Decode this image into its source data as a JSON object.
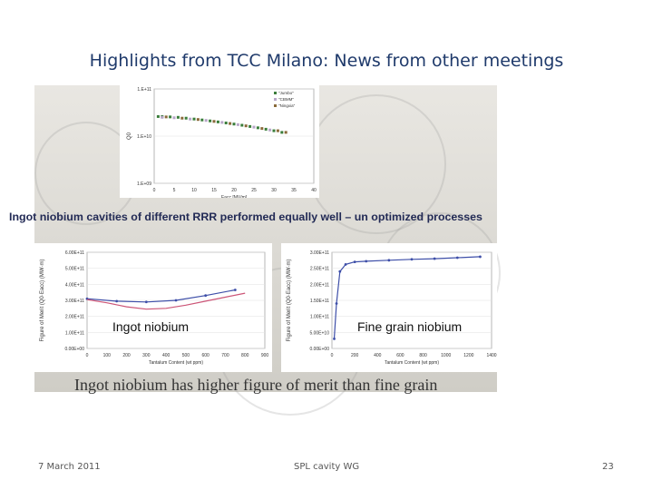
{
  "slide": {
    "title": "Highlights from TCC Milano: News from other meetings",
    "statement": "Ingot niobium cavities of different RRR performed equally well – un optimized processes",
    "caption": "Ingot niobium has higher figure of merit than fine grain",
    "footer": {
      "date": "7 March 2011",
      "center": "SPL cavity WG",
      "page": "23"
    },
    "colors": {
      "title": "#1f3a6b",
      "statement": "#222a55"
    }
  },
  "chart_data": [
    {
      "type": "scatter",
      "xlabel": "Eacc [MV/m]",
      "ylabel": "Q0",
      "xlim": [
        0,
        40
      ],
      "ylim": [
        1000000000.0,
        100000000000.0
      ],
      "yscale": "log",
      "xticks": [
        "0",
        "5",
        "10",
        "15",
        "20",
        "25",
        "30",
        "35",
        "40"
      ],
      "yticks": [
        "1.E+11",
        "1.E+10",
        "1.E+09"
      ],
      "legend": "top-right",
      "series": [
        {
          "name": "\"Jumbo\"",
          "color": "#3a7d3a",
          "x": [
            1,
            2,
            4,
            6,
            8,
            10,
            12,
            14,
            16,
            18,
            20,
            22,
            24,
            26,
            28,
            30,
            32
          ],
          "y": [
            26000000000.0,
            26000000000.0,
            25500000000.0,
            25000000000.0,
            24000000000.0,
            23000000000.0,
            22000000000.0,
            21000000000.0,
            20000000000.0,
            19000000000.0,
            18000000000.0,
            17000000000.0,
            16000000000.0,
            15000000000.0,
            14000000000.0,
            13000000000.0,
            12000000000.0
          ]
        },
        {
          "name": "\"CBMM\"",
          "color": "#b8a6c8",
          "x": [
            2,
            5,
            9,
            13,
            17,
            21,
            25,
            29
          ],
          "y": [
            25000000000.0,
            24500000000.0,
            23000000000.0,
            21500000000.0,
            19500000000.0,
            17500000000.0,
            15500000000.0,
            13500000000.0
          ]
        },
        {
          "name": "\"Ningxia\"",
          "color": "#8a6a3a",
          "x": [
            3,
            7,
            11,
            15,
            19,
            23,
            27,
            31,
            33
          ],
          "y": [
            25500000000.0,
            24000000000.0,
            22500000000.0,
            20500000000.0,
            18500000000.0,
            16500000000.0,
            14500000000.0,
            13000000000.0,
            12000000000.0
          ]
        }
      ]
    },
    {
      "type": "line",
      "xlabel": "Tantalum Content (wt ppm)",
      "ylabel": "Figure of Merit (Q0·Eacc) (MW·m)",
      "annotation": "Ingot niobium",
      "xlim": [
        0,
        900
      ],
      "ylim": [
        0,
        600000000000.0
      ],
      "xticks": [
        "0",
        "100",
        "200",
        "300",
        "400",
        "500",
        "600",
        "700",
        "800",
        "900"
      ],
      "yticks": [
        "0.00E+00",
        "1.00E+11",
        "2.00E+11",
        "3.00E+11",
        "4.00E+11",
        "5.00E+11",
        "6.00E+11"
      ],
      "series": [
        {
          "color": "#3d4ea8",
          "x": [
            0,
            150,
            300,
            450,
            600,
            750
          ],
          "y": [
            310000000000.0,
            295000000000.0,
            290000000000.0,
            300000000000.0,
            330000000000.0,
            365000000000.0
          ]
        },
        {
          "color": "#cc5577",
          "x": [
            0,
            100,
            200,
            300,
            400,
            500,
            600,
            700,
            800
          ],
          "y": [
            305000000000.0,
            285000000000.0,
            260000000000.0,
            245000000000.0,
            250000000000.0,
            270000000000.0,
            295000000000.0,
            320000000000.0,
            345000000000.0
          ]
        }
      ]
    },
    {
      "type": "line",
      "xlabel": "Tantalum Content (wt ppm)",
      "ylabel": "Figure of Merit (Q0·Eacc) (MW·m)",
      "annotation": "Fine grain niobium",
      "xlim": [
        0,
        1400
      ],
      "ylim": [
        0,
        300000000000.0
      ],
      "xticks": [
        "0",
        "200",
        "400",
        "600",
        "800",
        "1000",
        "1200",
        "1400"
      ],
      "yticks": [
        "0.00E+00",
        "5.00E+10",
        "1.00E+11",
        "1.50E+11",
        "2.00E+11",
        "2.50E+11",
        "3.00E+11"
      ],
      "series": [
        {
          "color": "#3d4ea8",
          "x": [
            20,
            40,
            70,
            120,
            200,
            300,
            500,
            700,
            900,
            1100,
            1300
          ],
          "y": [
            30000000000.0,
            140000000000.0,
            240000000000.0,
            262000000000.0,
            270000000000.0,
            272000000000.0,
            275000000000.0,
            278000000000.0,
            280000000000.0,
            283000000000.0,
            286000000000.0
          ]
        }
      ]
    }
  ]
}
